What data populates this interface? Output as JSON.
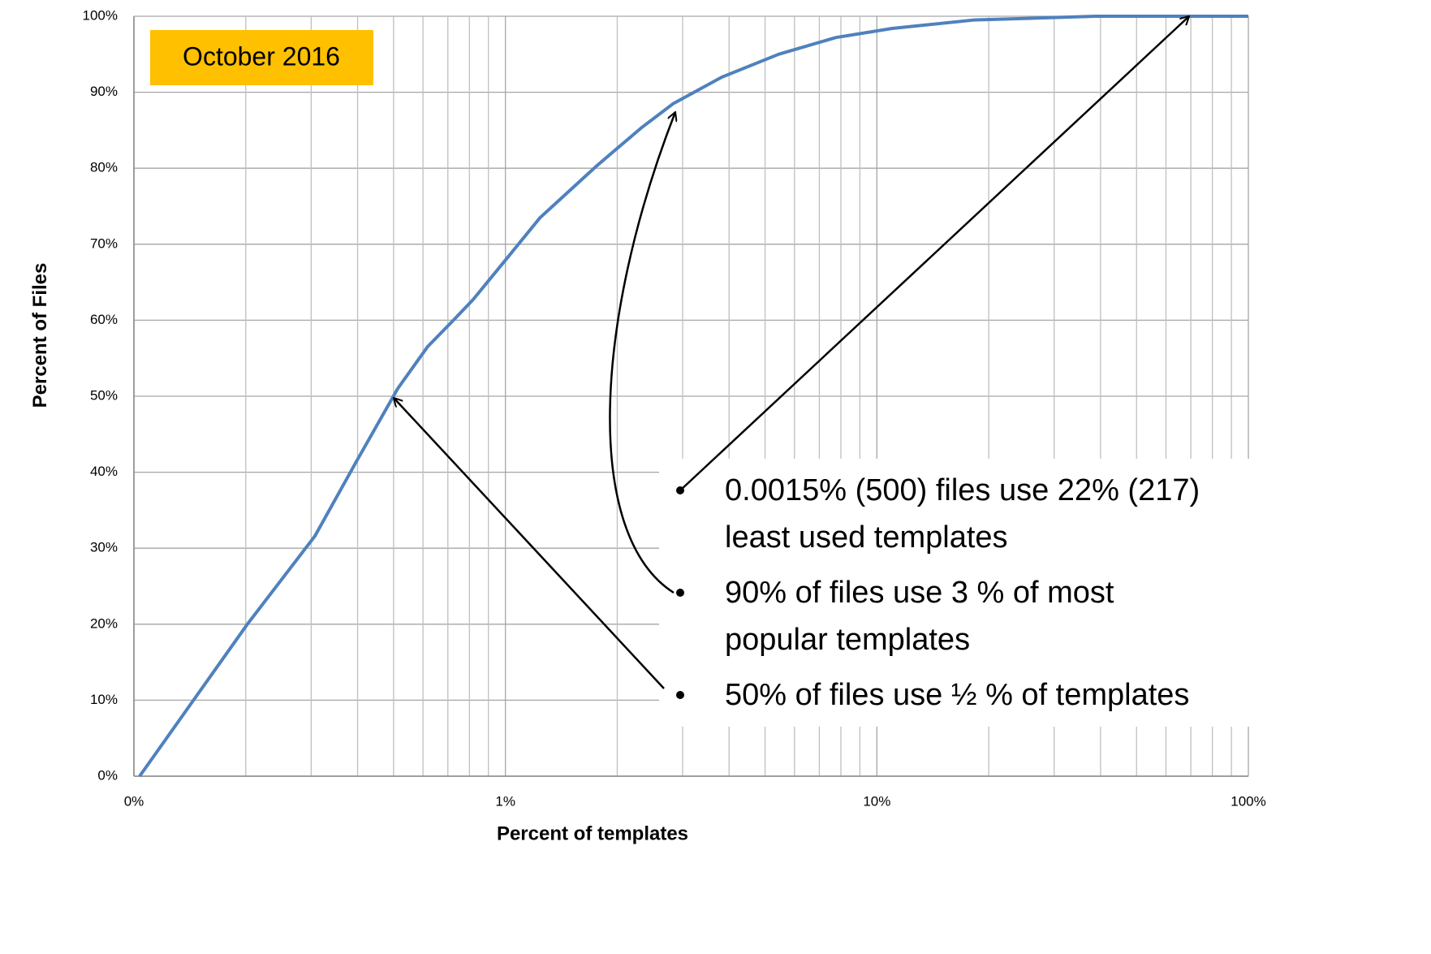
{
  "chart_data": {
    "type": "line",
    "xlabel": "Percent of templates",
    "ylabel": "Percent of Files",
    "annotation_box": "October 2016",
    "bullets": [
      [
        "0.0015% (500) files use 22% (217)",
        "least used templates"
      ],
      [
        "90%  of files use 3 % of most",
        "popular templates"
      ],
      [
        "50%  of files use ½ % of templates"
      ]
    ],
    "x_log": true,
    "grid": true,
    "xlim": [
      0.1,
      100
    ],
    "ylim": [
      0,
      100
    ],
    "xticks": [
      {
        "value": 0.1,
        "label": "0%"
      },
      {
        "value": 1,
        "label": "1%"
      },
      {
        "value": 10,
        "label": "10%"
      },
      {
        "value": 100,
        "label": "100%"
      }
    ],
    "xminorticks": [
      0.2,
      0.3,
      0.4,
      0.5,
      0.6,
      0.7,
      0.8,
      0.9,
      2,
      3,
      4,
      5,
      6,
      7,
      8,
      9,
      20,
      30,
      40,
      50,
      60,
      70,
      80,
      90
    ],
    "yticks": [
      {
        "value": 0,
        "label": "0%"
      },
      {
        "value": 10,
        "label": "10%"
      },
      {
        "value": 20,
        "label": "20%"
      },
      {
        "value": 30,
        "label": "30%"
      },
      {
        "value": 40,
        "label": "40%"
      },
      {
        "value": 50,
        "label": "50%"
      },
      {
        "value": 60,
        "label": "60%"
      },
      {
        "value": 70,
        "label": "70%"
      },
      {
        "value": 80,
        "label": "80%"
      },
      {
        "value": 90,
        "label": "90%"
      },
      {
        "value": 100,
        "label": "100%"
      }
    ],
    "x": [
      0.1036,
      0.202,
      0.307,
      0.398,
      0.513,
      0.617,
      0.718,
      0.818,
      1.0,
      1.24,
      1.76,
      2.32,
      2.83,
      3.83,
      5.44,
      7.76,
      11,
      18.2,
      38.9,
      100
    ],
    "series": [
      {
        "name": "Percent of Files",
        "color": "#4f81bd",
        "values": [
          0,
          20,
          31.6,
          41.5,
          51,
          56.5,
          59.8,
          62.7,
          67.9,
          73.5,
          80.3,
          85.3,
          88.5,
          92,
          95,
          97.2,
          98.4,
          99.5,
          100,
          100
        ]
      }
    ]
  }
}
